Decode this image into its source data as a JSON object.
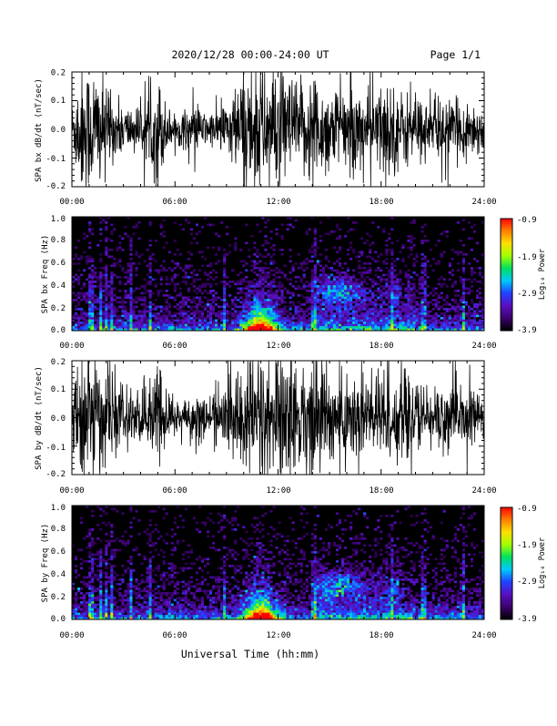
{
  "header": {
    "title": "2020/12/28  00:00-24:00 UT",
    "page": "Page 1/1"
  },
  "footer": {
    "xlabel": "Universal Time (hh:mm)"
  },
  "time_ticks": [
    "00:00",
    "06:00",
    "12:00",
    "18:00",
    "24:00"
  ],
  "chart_data": [
    {
      "type": "line",
      "ylabel": "SPA bx dB/dt (nT/sec)",
      "xlabel": "",
      "xlim": [
        "00:00",
        "24:00"
      ],
      "ylim": [
        -0.2,
        0.2
      ],
      "yticks": [
        "-0.2",
        "-0.1",
        "0.0",
        "0.1",
        "0.2"
      ],
      "envelope": {
        "x_hours": [
          0,
          0.5,
          1,
          1.5,
          2,
          2.5,
          3,
          3.5,
          4,
          4.5,
          5,
          5.5,
          6,
          6.5,
          7,
          7.5,
          8,
          8.5,
          9,
          9.5,
          10,
          10.5,
          11,
          11.5,
          12,
          12.5,
          13,
          13.5,
          14,
          14.5,
          15,
          15.5,
          16,
          16.5,
          17,
          17.5,
          18,
          18.5,
          19,
          19.5,
          20,
          20.5,
          21,
          21.5,
          22,
          22.5,
          23,
          23.5,
          24
        ],
        "amplitude": [
          0.08,
          0.2,
          0.2,
          0.2,
          0.11,
          0.09,
          0.08,
          0.07,
          0.07,
          0.09,
          0.18,
          0.07,
          0.05,
          0.06,
          0.07,
          0.06,
          0.05,
          0.07,
          0.09,
          0.12,
          0.2,
          0.2,
          0.2,
          0.2,
          0.2,
          0.17,
          0.15,
          0.14,
          0.2,
          0.15,
          0.13,
          0.13,
          0.12,
          0.13,
          0.12,
          0.12,
          0.14,
          0.15,
          0.12,
          0.11,
          0.1,
          0.09,
          0.09,
          0.1,
          0.09,
          0.08,
          0.09,
          0.08,
          0.07
        ]
      }
    },
    {
      "type": "heatmap",
      "ylabel": "SPA bx Freq (Hz)",
      "xlabel": "",
      "xlim": [
        "00:00",
        "24:00"
      ],
      "ylim": [
        0,
        1.0
      ],
      "yticks": [
        "0.0",
        "0.2",
        "0.4",
        "0.6",
        "0.8",
        "1.0"
      ],
      "colorbar": {
        "label": "Log₁₀ Power",
        "ticks": [
          "-0.9",
          "-1.9",
          "-2.9",
          "-3.9"
        ],
        "range": [
          -3.9,
          -0.9
        ]
      },
      "features": [
        {
          "desc": "broadband burst",
          "start_hour": 10.0,
          "end_hour": 12.0,
          "peak_log_power": -1.0
        },
        {
          "desc": "Pc1 band",
          "start_hour": 14.2,
          "end_hour": 19.0,
          "f_low_hz": 0.25,
          "f_high_hz": 0.45,
          "peak_log_power": -2.5
        }
      ]
    },
    {
      "type": "line",
      "ylabel": "SPA by dB/dt (nT/sec)",
      "xlabel": "",
      "xlim": [
        "00:00",
        "24:00"
      ],
      "ylim": [
        -0.2,
        0.2
      ],
      "yticks": [
        "-0.2",
        "-0.1",
        "0.0",
        "0.1",
        "0.2"
      ],
      "envelope": {
        "x_hours": [
          0,
          0.5,
          1,
          1.5,
          2,
          2.5,
          3,
          3.5,
          4,
          4.5,
          5,
          5.5,
          6,
          6.5,
          7,
          7.5,
          8,
          8.5,
          9,
          9.5,
          10,
          10.5,
          11,
          11.5,
          12,
          12.5,
          13,
          13.5,
          14,
          14.5,
          15,
          15.5,
          16,
          16.5,
          17,
          17.5,
          18,
          18.5,
          19,
          19.5,
          20,
          20.5,
          21,
          21.5,
          22,
          22.5,
          23,
          23.5,
          24
        ],
        "amplitude": [
          0.08,
          0.2,
          0.2,
          0.2,
          0.14,
          0.11,
          0.09,
          0.09,
          0.08,
          0.1,
          0.2,
          0.08,
          0.06,
          0.06,
          0.08,
          0.07,
          0.06,
          0.08,
          0.1,
          0.14,
          0.2,
          0.2,
          0.2,
          0.2,
          0.2,
          0.2,
          0.17,
          0.15,
          0.2,
          0.17,
          0.15,
          0.15,
          0.14,
          0.15,
          0.14,
          0.14,
          0.17,
          0.16,
          0.13,
          0.12,
          0.11,
          0.1,
          0.1,
          0.11,
          0.1,
          0.09,
          0.09,
          0.08,
          0.08
        ]
      }
    },
    {
      "type": "heatmap",
      "ylabel": "SPA by Freq (Hz)",
      "xlabel": "",
      "xlim": [
        "00:00",
        "24:00"
      ],
      "ylim": [
        0,
        1.0
      ],
      "yticks": [
        "0.0",
        "0.2",
        "0.4",
        "0.6",
        "0.8",
        "1.0"
      ],
      "colorbar": {
        "label": "Log₁₀ Power",
        "ticks": [
          "-0.9",
          "-1.9",
          "-2.9",
          "-3.9"
        ],
        "range": [
          -3.9,
          -0.9
        ]
      },
      "features": [
        {
          "desc": "broadband burst",
          "start_hour": 10.0,
          "end_hour": 12.0,
          "peak_log_power": -0.9
        },
        {
          "desc": "Pc1 band",
          "start_hour": 14.2,
          "end_hour": 19.0,
          "f_low_hz": 0.2,
          "f_high_hz": 0.4,
          "peak_log_power": -2.6
        }
      ]
    }
  ],
  "colors": {
    "trace": "#000000",
    "spec_background": "#000000",
    "colormap": [
      "#000000",
      "#3a006a",
      "#5a10c0",
      "#2040ff",
      "#00c8ff",
      "#00e060",
      "#a0ff00",
      "#ffe000",
      "#ff8000",
      "#ff0000"
    ]
  }
}
